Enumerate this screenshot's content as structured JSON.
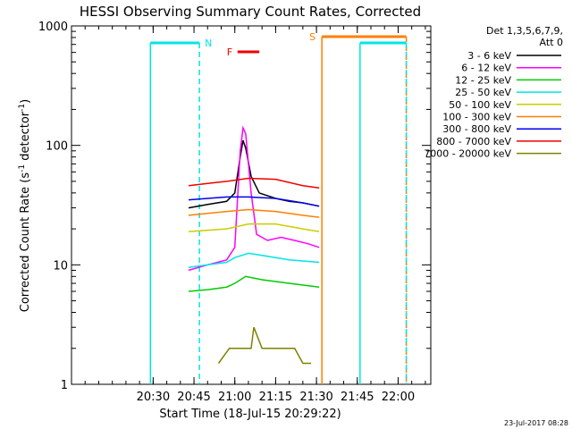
{
  "chart_data": {
    "type": "line",
    "title": "HESSI Observing Summary Count Rates, Corrected",
    "xlabel": "Start Time (18-Jul-15 20:29:22)",
    "ylabel_main": "Corrected Count Rate (s",
    "ylabel_sup1": "-1",
    "ylabel_mid": " detector",
    "ylabel_sup2": "-1",
    "ylabel_end": ")",
    "yscale": "log",
    "ylim": [
      1,
      1000
    ],
    "xlim_minutes": [
      20.0,
      22.2
    ],
    "x_ticks": [
      "20:30",
      "20:45",
      "21:00",
      "21:15",
      "21:30",
      "21:45",
      "22:00"
    ],
    "y_ticks": [
      "1",
      "10",
      "100",
      "1000"
    ],
    "legend_title_1": "Det 1,3,5,6,7,9,",
    "legend_title_2": "Att 0",
    "legend_position": "right",
    "timestamp": "23-Jul-2017 08:28",
    "flags": [
      {
        "label": "N",
        "color": "#00e5e5",
        "t_start": "20:29",
        "t_end": "20:47"
      },
      {
        "label": "F",
        "color": "#ee0000",
        "t_start": "21:01",
        "t_end": "21:09"
      },
      {
        "label": "S",
        "color": "#ff7f00",
        "t_start": "21:32",
        "t_end": "22:03"
      },
      {
        "label": "",
        "color": "#00e5e5",
        "t_start": "21:46",
        "t_end": "22:03"
      }
    ],
    "series": [
      {
        "name": "3 - 6 keV",
        "color": "#000000",
        "t": [
          "20:43",
          "20:50",
          "20:57",
          "21:00",
          "21:02",
          "21:03",
          "21:04",
          "21:06",
          "21:09",
          "21:15",
          "21:20",
          "21:25",
          "21:31"
        ],
        "values": [
          30,
          32,
          34,
          40,
          80,
          110,
          95,
          55,
          40,
          36,
          34,
          33,
          31
        ]
      },
      {
        "name": "6 - 12 keV",
        "color": "#ff00ff",
        "t": [
          "20:43",
          "20:50",
          "20:57",
          "21:00",
          "21:02",
          "21:03",
          "21:04",
          "21:06",
          "21:08",
          "21:12",
          "21:17",
          "21:22",
          "21:27",
          "21:31"
        ],
        "values": [
          9,
          10,
          11,
          14,
          90,
          140,
          125,
          40,
          18,
          16,
          17,
          16,
          15,
          14
        ]
      },
      {
        "name": "12 - 25 keV",
        "color": "#00cc00",
        "t": [
          "20:43",
          "20:50",
          "20:57",
          "21:00",
          "21:04",
          "21:10",
          "21:20",
          "21:31"
        ],
        "values": [
          6,
          6.2,
          6.5,
          7,
          8,
          7.5,
          7,
          6.5
        ]
      },
      {
        "name": "25 - 50 keV",
        "color": "#00e5e5",
        "t": [
          "20:43",
          "20:50",
          "20:57",
          "21:00",
          "21:05",
          "21:10",
          "21:20",
          "21:31"
        ],
        "values": [
          9.5,
          10,
          10.5,
          11.5,
          12.5,
          12,
          11,
          10.5
        ]
      },
      {
        "name": "50 - 100 keV",
        "color": "#cccc00",
        "t": [
          "20:43",
          "20:50",
          "20:57",
          "21:05",
          "21:15",
          "21:25",
          "21:31"
        ],
        "values": [
          19,
          19.5,
          20,
          22,
          22,
          20,
          19
        ]
      },
      {
        "name": "100 - 300 keV",
        "color": "#ff7f00",
        "t": [
          "20:43",
          "20:50",
          "20:57",
          "21:05",
          "21:15",
          "21:25",
          "21:31"
        ],
        "values": [
          26,
          27,
          28,
          29,
          28,
          26,
          25
        ]
      },
      {
        "name": "300 - 800 keV",
        "color": "#0000ee",
        "t": [
          "20:43",
          "20:50",
          "20:57",
          "21:05",
          "21:15",
          "21:25",
          "21:31"
        ],
        "values": [
          35,
          36,
          37,
          37,
          36,
          33,
          31
        ]
      },
      {
        "name": "800 - 7000 keV",
        "color": "#ee0000",
        "t": [
          "20:43",
          "20:50",
          "20:57",
          "21:05",
          "21:15",
          "21:25",
          "21:31"
        ],
        "values": [
          46,
          48,
          50,
          53,
          52,
          46,
          44
        ]
      },
      {
        "name": "7000 - 20000 keV",
        "color": "#808000",
        "t": [
          "20:54",
          "20:58",
          "21:02",
          "21:06",
          "21:07",
          "21:10",
          "21:14",
          "21:18",
          "21:22",
          "21:25",
          "21:28"
        ],
        "values": [
          1.5,
          2,
          2,
          2,
          3,
          2,
          2,
          2,
          2,
          1.5,
          1.5
        ]
      }
    ]
  }
}
